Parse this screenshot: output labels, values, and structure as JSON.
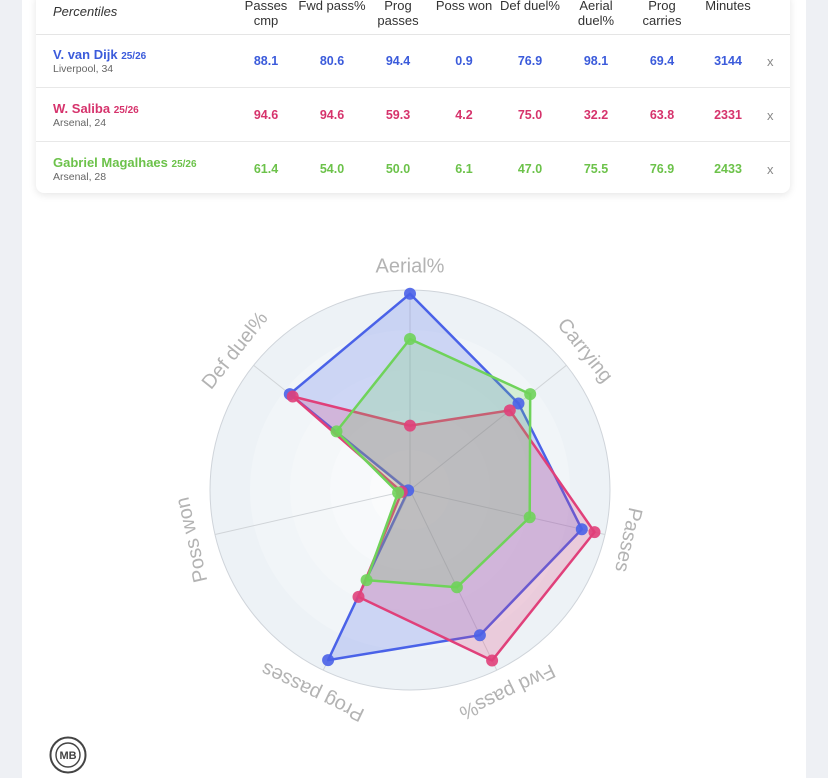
{
  "table": {
    "title": "Percentiles",
    "headers": [
      "Passes cmp",
      "Fwd pass%",
      "Prog passes",
      "Poss won",
      "Def duel%",
      "Aerial duel%",
      "Prog carries",
      "Minutes"
    ],
    "remove_label": "x",
    "rows": [
      {
        "name": "V. van Dijk",
        "season": "25/26",
        "meta": "Liverpool, 34",
        "color": "#3b5bdb",
        "values": [
          "88.1",
          "80.6",
          "94.4",
          "0.9",
          "76.9",
          "98.1",
          "69.4",
          "3144"
        ]
      },
      {
        "name": "W. Saliba",
        "season": "25/26",
        "meta": "Arsenal, 24",
        "color": "#d6336c",
        "values": [
          "94.6",
          "94.6",
          "59.3",
          "4.2",
          "75.0",
          "32.2",
          "63.8",
          "2331"
        ]
      },
      {
        "name": "Gabriel Magalhaes",
        "season": "25/26",
        "meta": "Arsenal, 28",
        "color": "#6cc24a",
        "values": [
          "61.4",
          "54.0",
          "50.0",
          "6.1",
          "47.0",
          "75.5",
          "76.9",
          "2433"
        ]
      }
    ]
  },
  "chart_data": {
    "type": "radar",
    "axes": [
      "Aerial%",
      "Carrying",
      "Passes",
      "Fwd pass%",
      "Prog passes",
      "Poss won",
      "Def duel%"
    ],
    "range": [
      0,
      100
    ],
    "series": [
      {
        "name": "V. van Dijk",
        "color": "#4a62e8",
        "values": [
          98.1,
          69.4,
          88.1,
          80.6,
          94.4,
          0.9,
          76.9
        ]
      },
      {
        "name": "W. Saliba",
        "color": "#e0407a",
        "values": [
          32.2,
          63.8,
          94.6,
          94.6,
          59.3,
          4.2,
          75.0
        ]
      },
      {
        "name": "Gabriel Magalhaes",
        "color": "#6fd35a",
        "values": [
          75.5,
          76.9,
          61.4,
          54.0,
          50.0,
          6.1,
          47.0
        ]
      }
    ]
  },
  "logo_text": "MB"
}
